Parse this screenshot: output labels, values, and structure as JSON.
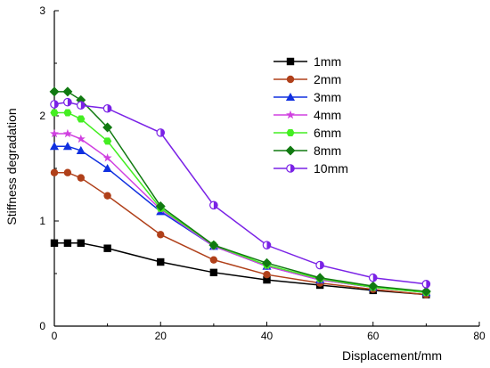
{
  "chart_data": {
    "type": "line",
    "title": "",
    "xlabel": "Displacement/mm",
    "ylabel": "Stiffness degradation",
    "xlim": [
      0,
      80
    ],
    "ylim": [
      0,
      3
    ],
    "xticks": [
      "0",
      "20",
      "40",
      "60",
      "80"
    ],
    "yticks": [
      "0",
      "1",
      "2",
      "3"
    ],
    "grid": false,
    "legend_position": "top-right",
    "x": [
      0,
      2.5,
      5,
      10,
      20,
      30,
      40,
      50,
      60,
      70
    ],
    "series": [
      {
        "name": "1mm",
        "color": "#000000",
        "marker": "square",
        "values": [
          0.79,
          0.79,
          0.79,
          0.74,
          0.61,
          0.51,
          0.44,
          0.39,
          0.34,
          0.3
        ]
      },
      {
        "name": "2mm",
        "color": "#b0401a",
        "marker": "circle",
        "values": [
          1.46,
          1.46,
          1.41,
          1.24,
          0.87,
          0.63,
          0.49,
          0.41,
          0.35,
          0.3
        ]
      },
      {
        "name": "3mm",
        "color": "#1030e0",
        "marker": "triangle",
        "values": [
          1.71,
          1.71,
          1.67,
          1.5,
          1.09,
          0.76,
          0.57,
          0.44,
          0.37,
          0.32
        ]
      },
      {
        "name": "4mm",
        "color": "#d040e0",
        "marker": "star",
        "values": [
          1.83,
          1.83,
          1.78,
          1.6,
          1.11,
          0.76,
          0.57,
          0.44,
          0.37,
          0.32
        ]
      },
      {
        "name": "6mm",
        "color": "#44ee22",
        "marker": "hexagon",
        "values": [
          2.03,
          2.03,
          1.97,
          1.76,
          1.12,
          0.77,
          0.58,
          0.45,
          0.37,
          0.32
        ]
      },
      {
        "name": "8mm",
        "color": "#117a11",
        "marker": "diamond",
        "values": [
          2.23,
          2.23,
          2.15,
          1.89,
          1.14,
          0.77,
          0.6,
          0.46,
          0.38,
          0.33
        ]
      },
      {
        "name": "10mm",
        "color": "#7a22e6",
        "marker": "half-circle",
        "values": [
          2.11,
          2.13,
          2.1,
          2.07,
          1.84,
          1.15,
          0.77,
          0.58,
          0.46,
          0.4
        ]
      }
    ]
  }
}
